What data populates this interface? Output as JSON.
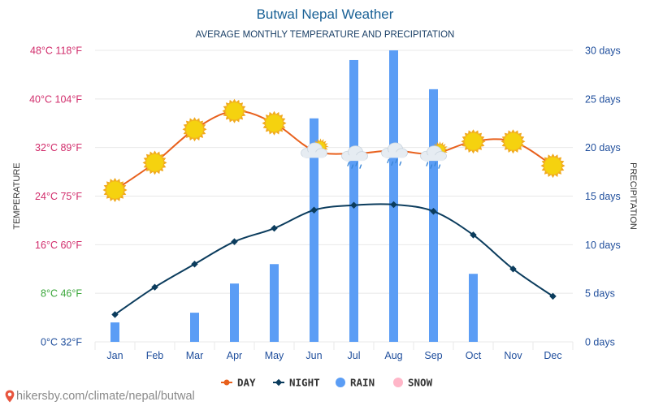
{
  "chart_data": {
    "type": "bar",
    "title": "Butwal Nepal Weather",
    "subtitle": "AVERAGE MONTHLY TEMPERATURE AND PRECIPITATION",
    "categories": [
      "Jan",
      "Feb",
      "Mar",
      "Apr",
      "May",
      "Jun",
      "Jul",
      "Aug",
      "Sep",
      "Oct",
      "Nov",
      "Dec"
    ],
    "series": [
      {
        "name": "DAY",
        "type": "line",
        "axis": "temperature",
        "unit": "°C",
        "values": [
          25,
          29.5,
          35,
          38,
          36,
          31.5,
          31,
          31.5,
          31,
          33,
          33,
          29
        ],
        "color": "#e8601c",
        "icons": [
          "sun",
          "sun",
          "sun",
          "sun",
          "sun",
          "sun-cloud",
          "cloud-rain",
          "cloud-rain",
          "sun-cloud-rain",
          "sun",
          "sun",
          "sun"
        ]
      },
      {
        "name": "NIGHT",
        "type": "line",
        "axis": "temperature",
        "unit": "°C",
        "values": [
          4.5,
          9,
          12.8,
          16.5,
          18.7,
          21.7,
          22.5,
          22.6,
          21.5,
          17.6,
          12,
          7.5
        ],
        "color": "#0b3c5d"
      },
      {
        "name": "RAIN",
        "type": "bar",
        "axis": "precipitation",
        "unit": "days",
        "values": [
          2,
          0,
          3,
          6,
          8,
          23,
          29,
          30,
          26,
          7,
          0,
          0
        ],
        "color": "#5b9df5"
      },
      {
        "name": "SNOW",
        "type": "bar",
        "axis": "precipitation",
        "unit": "days",
        "values": [
          0,
          0,
          0,
          0,
          0,
          0,
          0,
          0,
          0,
          0,
          0,
          0
        ],
        "color": "#ffb6c8"
      }
    ],
    "y_left": {
      "label": "TEMPERATURE",
      "range": [
        0,
        48
      ],
      "ticks": [
        {
          "value": 0,
          "label": "0°C 32°F",
          "color": "#1f4e9c"
        },
        {
          "value": 8,
          "label": "8°C 46°F",
          "color": "#3aa63a"
        },
        {
          "value": 16,
          "label": "16°C 60°F",
          "color": "#d12c6b"
        },
        {
          "value": 24,
          "label": "24°C 75°F",
          "color": "#d12c6b"
        },
        {
          "value": 32,
          "label": "32°C 89°F",
          "color": "#d12c6b"
        },
        {
          "value": 40,
          "label": "40°C 104°F",
          "color": "#d12c6b"
        },
        {
          "value": 48,
          "label": "48°C 118°F",
          "color": "#d12c6b"
        }
      ]
    },
    "y_right": {
      "label": "PRECIPITATION",
      "range": [
        0,
        30
      ],
      "ticks": [
        {
          "value": 0,
          "label": "0 days"
        },
        {
          "value": 5,
          "label": "5 days"
        },
        {
          "value": 10,
          "label": "10 days"
        },
        {
          "value": 15,
          "label": "15 days"
        },
        {
          "value": 20,
          "label": "20 days"
        },
        {
          "value": 25,
          "label": "25 days"
        },
        {
          "value": 30,
          "label": "30 days"
        }
      ]
    },
    "legend": {
      "position": "bottom-center",
      "items": [
        "DAY",
        "NIGHT",
        "RAIN",
        "SNOW"
      ]
    },
    "grid": true
  },
  "colors": {
    "title": "#1a6196",
    "subtitle": "#1a3f66",
    "month_label": "#1f4e9c",
    "right_tick": "#1f4e9c",
    "grid": "#e8e8e8",
    "axis_label": "#333333",
    "sun": "#f5d20f",
    "sun_ray": "#f0a91e",
    "cloud": "#e6ecf2",
    "rain_drop": "#3b86d6",
    "footer": "#8a8a8a"
  },
  "footer": {
    "text": "hikersby.com/climate/nepal/butwal",
    "icon": "location-pin-icon"
  }
}
